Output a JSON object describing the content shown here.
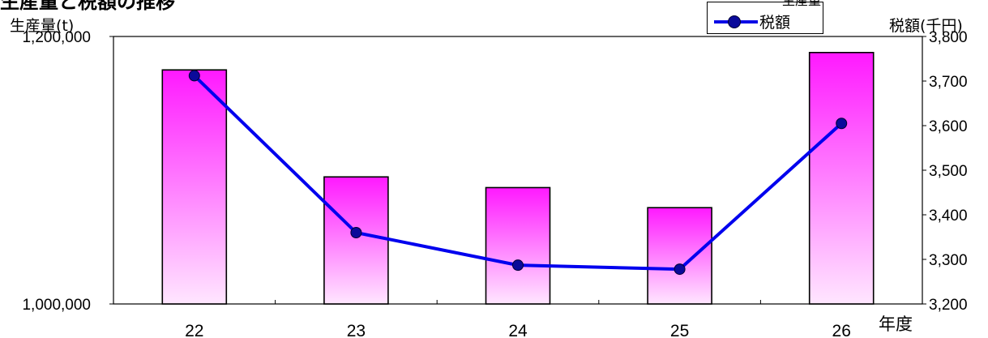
{
  "page_title": "生産量と税額の推移",
  "chart_data": {
    "type": "bar",
    "title": "生産量と税額の推移",
    "xlabel": "年度",
    "ylabel": "生産量(t)",
    "y2label": "税額(千円)",
    "categories": [
      "22",
      "23",
      "24",
      "25",
      "26"
    ],
    "ylim": [
      1000000,
      1200000
    ],
    "y2lim": [
      3200,
      3800
    ],
    "yticks": [
      "1,200,000",
      "1,000,000"
    ],
    "y2ticks": [
      "3,800",
      "3,700",
      "3,600",
      "3,500",
      "3,400",
      "3,300",
      "3,200"
    ],
    "grid": false,
    "legend_position": "top-right",
    "series": [
      {
        "name": "生産量",
        "type": "bar",
        "axis": "left",
        "values": [
          1175000,
          1095000,
          1087000,
          1072000,
          1188000
        ],
        "color": "#ff33ff"
      },
      {
        "name": "税額",
        "type": "line",
        "axis": "right",
        "values": [
          3712,
          3360,
          3287,
          3278,
          3605
        ],
        "color": "#0000ee"
      }
    ]
  }
}
